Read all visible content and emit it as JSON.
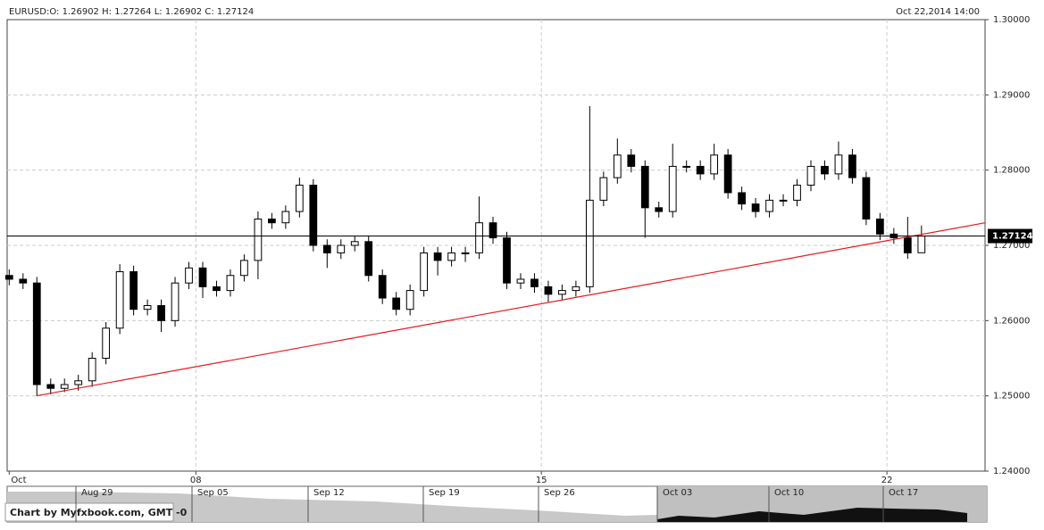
{
  "chart_data": {
    "type": "candlestick",
    "header": "EURUSD:O: 1.26902   H: 1.27264   L: 1.26902   C: 1.27124",
    "timestamp": "Oct 22,2014 14:00",
    "credit": "Chart by Myfxbook.com, GMT -0",
    "xlim": [
      2.27,
      16.42
    ],
    "ylim": [
      1.24,
      1.3
    ],
    "xticks": [
      {
        "value": 2.3,
        "label": "Oct"
      },
      {
        "value": 5,
        "label": "08"
      },
      {
        "value": 10,
        "label": "15"
      },
      {
        "value": 15,
        "label": "22"
      }
    ],
    "yticks": [
      {
        "value": 1.24,
        "label": "1.24000"
      },
      {
        "value": 1.25,
        "label": "1.25000"
      },
      {
        "value": 1.26,
        "label": "1.26000"
      },
      {
        "value": 1.27,
        "label": "1.27000"
      },
      {
        "value": 1.28,
        "label": "1.28000"
      },
      {
        "value": 1.29,
        "label": "1.29000"
      },
      {
        "value": 1.3,
        "label": "1.30000"
      }
    ],
    "grid": true,
    "up_color": "#ffffff",
    "down_color": "#000000",
    "x": [
      2.3,
      2.5,
      2.7,
      2.9,
      3.1,
      3.3,
      3.5,
      3.7,
      3.9,
      4.1,
      4.3,
      4.5,
      4.7,
      4.9,
      5.1,
      5.3,
      5.5,
      5.7,
      5.9,
      6.1,
      6.3,
      6.5,
      6.7,
      6.9,
      7.1,
      7.3,
      7.5,
      7.7,
      7.9,
      8.1,
      8.3,
      8.5,
      8.7,
      8.9,
      9.1,
      9.3,
      9.5,
      9.7,
      9.9,
      10.1,
      10.3,
      10.5,
      10.7,
      10.9,
      11.1,
      11.3,
      11.5,
      11.7,
      11.9,
      12.1,
      12.3,
      12.5,
      12.7,
      12.9,
      13.1,
      13.3,
      13.5,
      13.7,
      13.9,
      14.1,
      14.3,
      14.5,
      14.7,
      14.9,
      15.1,
      15.3,
      15.5
    ],
    "open": [
      1.266,
      1.2655,
      1.265,
      1.2515,
      1.251,
      1.2515,
      1.252,
      1.255,
      1.259,
      1.2665,
      1.2615,
      1.262,
      1.26,
      1.265,
      1.267,
      1.2645,
      1.264,
      1.266,
      1.268,
      1.2735,
      1.273,
      1.2745,
      1.278,
      1.27,
      1.269,
      1.27,
      1.2705,
      1.266,
      1.263,
      1.2615,
      1.264,
      1.269,
      1.268,
      1.269,
      1.269,
      1.273,
      1.271,
      1.265,
      1.2655,
      1.2645,
      1.2635,
      1.264,
      1.2645,
      1.276,
      1.279,
      1.282,
      1.2805,
      1.275,
      1.2745,
      1.2805,
      1.2805,
      1.2795,
      1.282,
      1.277,
      1.2755,
      1.2745,
      1.276,
      1.276,
      1.278,
      1.2805,
      1.2795,
      1.282,
      1.279,
      1.2735,
      1.2715,
      1.271,
      1.26902
    ],
    "high": [
      1.2668,
      1.2663,
      1.2658,
      1.2523,
      1.2523,
      1.2528,
      1.2558,
      1.2598,
      1.2675,
      1.2673,
      1.2628,
      1.2628,
      1.2658,
      1.2678,
      1.2678,
      1.2653,
      1.2668,
      1.2688,
      1.2745,
      1.2743,
      1.2753,
      1.279,
      1.2788,
      1.2708,
      1.2708,
      1.2713,
      1.2713,
      1.2668,
      1.2638,
      1.2648,
      1.2698,
      1.2698,
      1.2698,
      1.2698,
      1.2765,
      1.2738,
      1.2718,
      1.2663,
      1.2663,
      1.2653,
      1.2648,
      1.2653,
      1.2885,
      1.2798,
      1.2842,
      1.2828,
      1.2813,
      1.2758,
      1.2835,
      1.2813,
      1.2813,
      1.2835,
      1.2828,
      1.2778,
      1.2763,
      1.2768,
      1.2768,
      1.2788,
      1.2813,
      1.2813,
      1.2838,
      1.2828,
      1.2798,
      1.2743,
      1.2723,
      1.2738,
      1.27264
    ],
    "low": [
      1.2647,
      1.2642,
      1.25,
      1.2502,
      1.2505,
      1.2507,
      1.2512,
      1.2542,
      1.2582,
      1.2607,
      1.2607,
      1.2585,
      1.2592,
      1.2642,
      1.263,
      1.2632,
      1.2632,
      1.2652,
      1.2655,
      1.2722,
      1.2722,
      1.2737,
      1.2692,
      1.267,
      1.2682,
      1.2692,
      1.2652,
      1.2622,
      1.2607,
      1.2607,
      1.2632,
      1.266,
      1.2672,
      1.2678,
      1.2682,
      1.2702,
      1.2642,
      1.2642,
      1.2637,
      1.2625,
      1.2627,
      1.2632,
      1.2637,
      1.2752,
      1.2782,
      1.2797,
      1.271,
      1.2737,
      1.2737,
      1.2797,
      1.2787,
      1.2787,
      1.2762,
      1.2747,
      1.2737,
      1.2737,
      1.2752,
      1.2752,
      1.2772,
      1.2787,
      1.2787,
      1.2782,
      1.2727,
      1.2707,
      1.2702,
      1.2682,
      1.26902
    ],
    "close": [
      1.2655,
      1.265,
      1.2515,
      1.251,
      1.2515,
      1.252,
      1.255,
      1.259,
      1.2665,
      1.2615,
      1.262,
      1.26,
      1.265,
      1.267,
      1.2645,
      1.264,
      1.266,
      1.268,
      1.2735,
      1.273,
      1.2745,
      1.278,
      1.27,
      1.269,
      1.27,
      1.2705,
      1.266,
      1.263,
      1.2615,
      1.264,
      1.269,
      1.268,
      1.269,
      1.269,
      1.273,
      1.271,
      1.265,
      1.2655,
      1.2645,
      1.2635,
      1.264,
      1.2645,
      1.276,
      1.279,
      1.282,
      1.2805,
      1.275,
      1.2745,
      1.2805,
      1.2805,
      1.2795,
      1.282,
      1.277,
      1.2755,
      1.2745,
      1.276,
      1.276,
      1.278,
      1.2805,
      1.2795,
      1.282,
      1.279,
      1.2735,
      1.2715,
      1.271,
      1.269,
      1.27124
    ],
    "trendline": {
      "color": "#e8191b",
      "x": [
        2.69,
        16.42
      ],
      "y": [
        1.25,
        1.273
      ]
    },
    "navigator_labels": [
      "Aug 29",
      "Sep 05",
      "Sep 12",
      "Sep 19",
      "Sep 26",
      "Oct 03",
      "Oct 10",
      "Oct 17"
    ]
  }
}
